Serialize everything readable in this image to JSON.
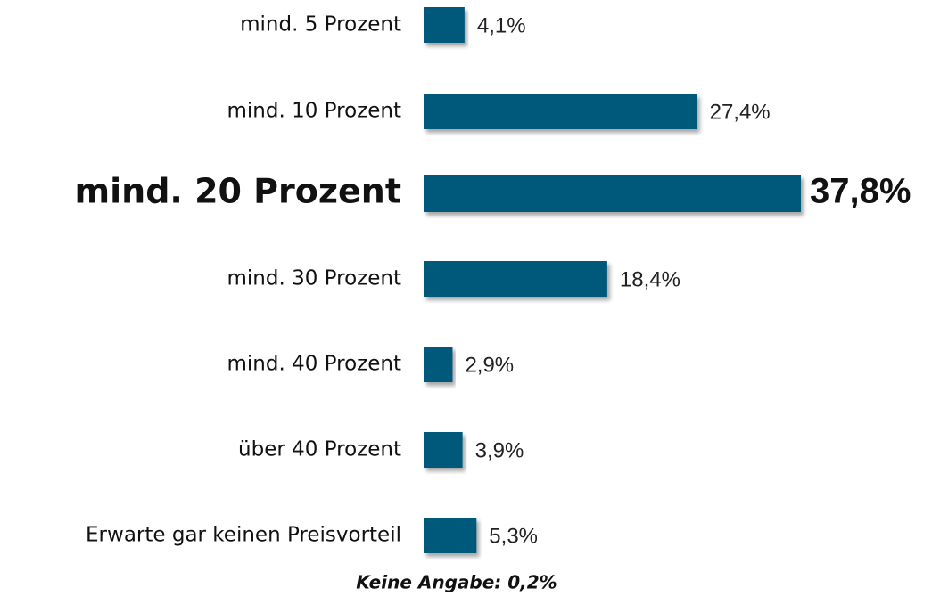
{
  "chart_data": {
    "type": "hbar",
    "categories": [
      "mind. 5 Prozent",
      "mind. 10 Prozent",
      "mind. 20 Prozent",
      "mind. 30 Prozent",
      "mind. 40 Prozent",
      "über 40 Prozent",
      "Erwarte gar keinen Preisvorteil"
    ],
    "values": [
      4.1,
      27.4,
      37.8,
      18.4,
      2.9,
      3.9,
      5.3
    ],
    "value_labels": [
      "4,1%",
      "27,4%",
      "37,8%",
      "18,4%",
      "2,9%",
      "3,9%",
      "5,3%"
    ],
    "color": "#00587a",
    "highlight": 2,
    "annotation": "Keine Angabe: 0,2%"
  }
}
